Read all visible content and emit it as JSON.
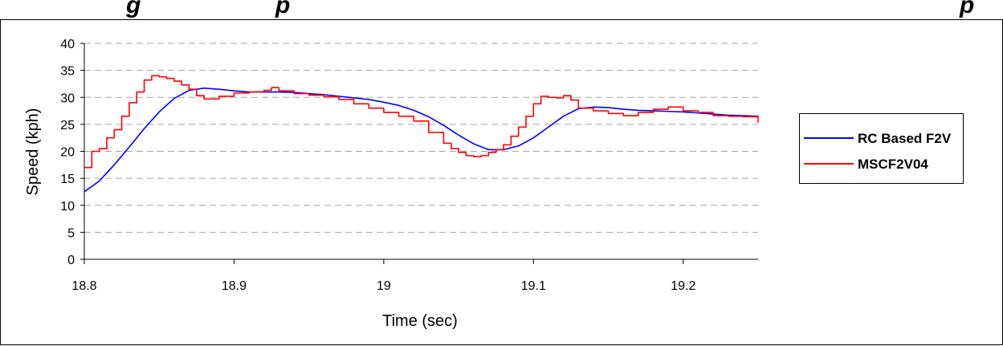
{
  "chart_data": {
    "type": "line",
    "title_fragment_left": "g",
    "title_fragment_mid": "p",
    "title_fragment_right": "p",
    "xlabel": "Time (sec)",
    "ylabel": "Speed (kph)",
    "xlim": [
      18.8,
      19.25
    ],
    "ylim": [
      0,
      40
    ],
    "x_ticks": [
      "18.8",
      "18.9",
      "19",
      "19.1",
      "19.2"
    ],
    "x_tick_values": [
      18.8,
      18.9,
      19.0,
      19.1,
      19.2
    ],
    "y_ticks": [
      "0",
      "5",
      "10",
      "15",
      "20",
      "25",
      "30",
      "35",
      "40"
    ],
    "y_tick_values": [
      0,
      5,
      10,
      15,
      20,
      25,
      30,
      35,
      40
    ],
    "grid": "horizontal-dashed",
    "legend_position": "right",
    "series": [
      {
        "name": "RC Based F2V",
        "color": "#0000ff",
        "step": false,
        "x": [
          18.8,
          18.81,
          18.82,
          18.83,
          18.84,
          18.85,
          18.86,
          18.87,
          18.88,
          18.89,
          18.9,
          18.91,
          18.92,
          18.93,
          18.94,
          18.95,
          18.96,
          18.97,
          18.98,
          18.99,
          19.0,
          19.01,
          19.02,
          19.03,
          19.04,
          19.05,
          19.06,
          19.07,
          19.08,
          19.09,
          19.1,
          19.11,
          19.12,
          19.13,
          19.14,
          19.15,
          19.16,
          19.17,
          19.18,
          19.19,
          19.2,
          19.21,
          19.22,
          19.23,
          19.24,
          19.25
        ],
        "y": [
          12.5,
          14.5,
          17.5,
          20.8,
          24.2,
          27.3,
          29.8,
          31.3,
          31.7,
          31.5,
          31.2,
          31.0,
          31.0,
          31.0,
          30.9,
          30.7,
          30.5,
          30.2,
          29.9,
          29.6,
          29.1,
          28.5,
          27.6,
          26.4,
          24.8,
          23.0,
          21.4,
          20.3,
          20.3,
          21.0,
          22.5,
          24.5,
          26.5,
          27.9,
          28.2,
          28.1,
          27.8,
          27.6,
          27.5,
          27.4,
          27.3,
          27.1,
          26.9,
          26.7,
          26.6,
          26.5
        ]
      },
      {
        "name": "MSCF2V04",
        "color": "#ff0000",
        "step": true,
        "x": [
          18.8,
          18.805,
          18.81,
          18.815,
          18.82,
          18.825,
          18.83,
          18.835,
          18.84,
          18.845,
          18.85,
          18.855,
          18.86,
          18.865,
          18.87,
          18.875,
          18.88,
          18.89,
          18.9,
          18.91,
          18.92,
          18.925,
          18.93,
          18.94,
          18.95,
          18.96,
          18.97,
          18.98,
          18.99,
          19.0,
          19.01,
          19.02,
          19.03,
          19.04,
          19.045,
          19.05,
          19.055,
          19.06,
          19.065,
          19.07,
          19.075,
          19.08,
          19.085,
          19.09,
          19.095,
          19.1,
          19.105,
          19.11,
          19.115,
          19.12,
          19.125,
          19.13,
          19.14,
          19.15,
          19.16,
          19.17,
          19.18,
          19.19,
          19.2,
          19.21,
          19.22,
          19.23,
          19.24,
          19.25
        ],
        "y": [
          17.0,
          20.0,
          20.5,
          22.5,
          24.0,
          26.5,
          29.0,
          31.0,
          33.2,
          34.0,
          33.8,
          33.5,
          33.0,
          32.3,
          31.5,
          30.3,
          29.7,
          30.2,
          30.8,
          31.0,
          31.3,
          31.8,
          31.2,
          30.7,
          30.4,
          30.1,
          29.6,
          28.8,
          28.0,
          27.2,
          26.5,
          25.6,
          23.5,
          21.5,
          20.5,
          19.8,
          19.2,
          19.0,
          19.2,
          19.8,
          20.3,
          21.2,
          22.8,
          24.5,
          26.5,
          28.8,
          30.2,
          30.0,
          29.9,
          30.3,
          29.5,
          28.0,
          27.5,
          27.0,
          26.6,
          27.2,
          27.8,
          28.2,
          27.5,
          27.2,
          26.6,
          26.5,
          26.4,
          25.3
        ]
      }
    ]
  }
}
